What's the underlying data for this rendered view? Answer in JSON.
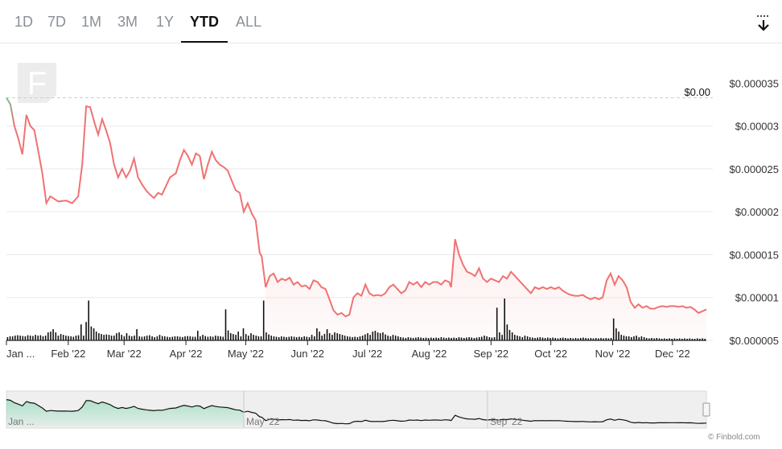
{
  "tabs": [
    {
      "label": "1D",
      "active": false
    },
    {
      "label": "7D",
      "active": false
    },
    {
      "label": "1M",
      "active": false
    },
    {
      "label": "3M",
      "active": false
    },
    {
      "label": "1Y",
      "active": false
    },
    {
      "label": "YTD",
      "active": true
    },
    {
      "label": "ALL",
      "active": false
    }
  ],
  "download_icon": "download-icon",
  "credit": "© Finbold.com",
  "colors": {
    "line": "#f07272",
    "fill": "#fbdada",
    "start": "#5fcf9c",
    "volume": "#111111",
    "grid": "#e9e9e9"
  },
  "chart_data": {
    "type": "line",
    "ylim": [
      5e-06,
      3.55e-05
    ],
    "y_ticks": [
      {
        "v": 3.5e-05,
        "label": "$0.000035"
      },
      {
        "v": 3e-05,
        "label": "$0.00003"
      },
      {
        "v": 2.5e-05,
        "label": "$0.000025"
      },
      {
        "v": 2e-05,
        "label": "$0.00002"
      },
      {
        "v": 1.5e-05,
        "label": "$0.000015"
      },
      {
        "v": 1e-05,
        "label": "$0.00001"
      },
      {
        "v": 5e-06,
        "label": "$0.000005"
      }
    ],
    "x_ticks": [
      {
        "d": 0,
        "label": "Jan ..."
      },
      {
        "d": 31,
        "label": "Feb '22"
      },
      {
        "d": 59,
        "label": "Mar '22"
      },
      {
        "d": 90,
        "label": "Apr '22"
      },
      {
        "d": 120,
        "label": "May '22"
      },
      {
        "d": 151,
        "label": "Jun '22"
      },
      {
        "d": 181,
        "label": "Jul '22"
      },
      {
        "d": 212,
        "label": "Aug '22"
      },
      {
        "d": 243,
        "label": "Sep '22"
      },
      {
        "d": 273,
        "label": "Oct '22"
      },
      {
        "d": 304,
        "label": "Nov '22"
      },
      {
        "d": 334,
        "label": "Dec '22"
      }
    ],
    "current_price_label": "$0.00",
    "reference_value": 3.33e-05,
    "series": [
      {
        "points": [
          [
            0,
            3.33e-05
          ],
          [
            2,
            3.25e-05
          ],
          [
            4,
            3e-05
          ],
          [
            6,
            2.85e-05
          ],
          [
            8,
            2.67e-05
          ],
          [
            10,
            3.13e-05
          ],
          [
            12,
            3e-05
          ],
          [
            14,
            2.95e-05
          ],
          [
            16,
            2.7e-05
          ],
          [
            18,
            2.45e-05
          ],
          [
            20,
            2.1e-05
          ],
          [
            22,
            2.18e-05
          ],
          [
            26,
            2.12e-05
          ],
          [
            30,
            2.13e-05
          ],
          [
            33,
            2.1e-05
          ],
          [
            36,
            2.18e-05
          ],
          [
            38,
            2.55e-05
          ],
          [
            40,
            3.23e-05
          ],
          [
            42,
            3.22e-05
          ],
          [
            44,
            3.05e-05
          ],
          [
            46,
            2.9e-05
          ],
          [
            48,
            3.08e-05
          ],
          [
            50,
            2.95e-05
          ],
          [
            52,
            2.8e-05
          ],
          [
            54,
            2.55e-05
          ],
          [
            56,
            2.4e-05
          ],
          [
            58,
            2.5e-05
          ],
          [
            60,
            2.4e-05
          ],
          [
            62,
            2.48e-05
          ],
          [
            64,
            2.62e-05
          ],
          [
            66,
            2.4e-05
          ],
          [
            68,
            2.32e-05
          ],
          [
            70,
            2.25e-05
          ],
          [
            72,
            2.2e-05
          ],
          [
            74,
            2.16e-05
          ],
          [
            76,
            2.22e-05
          ],
          [
            78,
            2.2e-05
          ],
          [
            80,
            2.3e-05
          ],
          [
            82,
            2.4e-05
          ],
          [
            85,
            2.45e-05
          ],
          [
            87,
            2.6e-05
          ],
          [
            89,
            2.72e-05
          ],
          [
            91,
            2.65e-05
          ],
          [
            93,
            2.55e-05
          ],
          [
            95,
            2.68e-05
          ],
          [
            97,
            2.65e-05
          ],
          [
            99,
            2.38e-05
          ],
          [
            101,
            2.55e-05
          ],
          [
            103,
            2.7e-05
          ],
          [
            105,
            2.6e-05
          ],
          [
            107,
            2.55e-05
          ],
          [
            109,
            2.52e-05
          ],
          [
            111,
            2.48e-05
          ],
          [
            113,
            2.36e-05
          ],
          [
            115,
            2.25e-05
          ],
          [
            117,
            2.22e-05
          ],
          [
            119,
            2e-05
          ],
          [
            121,
            2.1e-05
          ],
          [
            123,
            1.98e-05
          ],
          [
            125,
            1.9e-05
          ],
          [
            127,
            1.52e-05
          ],
          [
            128,
            1.48e-05
          ],
          [
            130,
            1.12e-05
          ],
          [
            132,
            1.25e-05
          ],
          [
            134,
            1.28e-05
          ],
          [
            136,
            1.18e-05
          ],
          [
            138,
            1.22e-05
          ],
          [
            140,
            1.2e-05
          ],
          [
            142,
            1.23e-05
          ],
          [
            144,
            1.15e-05
          ],
          [
            146,
            1.18e-05
          ],
          [
            148,
            1.13e-05
          ],
          [
            150,
            1.14e-05
          ],
          [
            152,
            1.1e-05
          ],
          [
            154,
            1.2e-05
          ],
          [
            156,
            1.18e-05
          ],
          [
            158,
            1.12e-05
          ],
          [
            160,
            1.1e-05
          ],
          [
            162,
            9.8e-06
          ],
          [
            164,
            8.5e-06
          ],
          [
            166,
            8e-06
          ],
          [
            168,
            8.2e-06
          ],
          [
            170,
            7.8e-06
          ],
          [
            172,
            8e-06
          ],
          [
            174,
            1e-05
          ],
          [
            176,
            1.05e-05
          ],
          [
            178,
            1.02e-05
          ],
          [
            180,
            1.15e-05
          ],
          [
            182,
            1.05e-05
          ],
          [
            184,
            1.02e-05
          ],
          [
            186,
            1.03e-05
          ],
          [
            188,
            1.02e-05
          ],
          [
            190,
            1.05e-05
          ],
          [
            192,
            1.12e-05
          ],
          [
            194,
            1.15e-05
          ],
          [
            196,
            1.1e-05
          ],
          [
            198,
            1.05e-05
          ],
          [
            200,
            1.08e-05
          ],
          [
            202,
            1.18e-05
          ],
          [
            204,
            1.15e-05
          ],
          [
            206,
            1.18e-05
          ],
          [
            208,
            1.12e-05
          ],
          [
            210,
            1.18e-05
          ],
          [
            212,
            1.15e-05
          ],
          [
            214,
            1.18e-05
          ],
          [
            216,
            1.18e-05
          ],
          [
            218,
            1.15e-05
          ],
          [
            220,
            1.2e-05
          ],
          [
            222,
            1.18e-05
          ],
          [
            223,
            1.12e-05
          ],
          [
            225,
            1.68e-05
          ],
          [
            227,
            1.5e-05
          ],
          [
            229,
            1.38e-05
          ],
          [
            231,
            1.3e-05
          ],
          [
            233,
            1.28e-05
          ],
          [
            235,
            1.25e-05
          ],
          [
            237,
            1.34e-05
          ],
          [
            239,
            1.22e-05
          ],
          [
            241,
            1.18e-05
          ],
          [
            243,
            1.22e-05
          ],
          [
            245,
            1.2e-05
          ],
          [
            247,
            1.18e-05
          ],
          [
            249,
            1.25e-05
          ],
          [
            251,
            1.22e-05
          ],
          [
            253,
            1.3e-05
          ],
          [
            255,
            1.25e-05
          ],
          [
            257,
            1.2e-05
          ],
          [
            259,
            1.15e-05
          ],
          [
            261,
            1.1e-05
          ],
          [
            263,
            1.05e-05
          ],
          [
            265,
            1.12e-05
          ],
          [
            267,
            1.1e-05
          ],
          [
            269,
            1.12e-05
          ],
          [
            271,
            1.1e-05
          ],
          [
            273,
            1.12e-05
          ],
          [
            275,
            1.1e-05
          ],
          [
            277,
            1.12e-05
          ],
          [
            279,
            1.08e-05
          ],
          [
            281,
            1.05e-05
          ],
          [
            283,
            1.03e-05
          ],
          [
            285,
            1.02e-05
          ],
          [
            287,
            1.02e-05
          ],
          [
            289,
            1.03e-05
          ],
          [
            291,
            1e-05
          ],
          [
            293,
            9.8e-06
          ],
          [
            295,
            1e-05
          ],
          [
            297,
            9.8e-06
          ],
          [
            299,
            1e-05
          ],
          [
            301,
            1.2e-05
          ],
          [
            303,
            1.28e-05
          ],
          [
            305,
            1.15e-05
          ],
          [
            307,
            1.25e-05
          ],
          [
            309,
            1.2e-05
          ],
          [
            311,
            1.12e-05
          ],
          [
            313,
            9.5e-06
          ],
          [
            315,
            8.8e-06
          ],
          [
            317,
            9.2e-06
          ],
          [
            319,
            8.8e-06
          ],
          [
            321,
            9e-06
          ],
          [
            323,
            8.7e-06
          ],
          [
            325,
            8.7e-06
          ],
          [
            327,
            8.9e-06
          ],
          [
            329,
            9e-06
          ],
          [
            331,
            8.9e-06
          ],
          [
            333,
            9e-06
          ],
          [
            335,
            9e-06
          ],
          [
            337,
            8.9e-06
          ],
          [
            339,
            9e-06
          ],
          [
            341,
            8.8e-06
          ],
          [
            343,
            8.9e-06
          ],
          [
            345,
            8.6e-06
          ],
          [
            347,
            8.2e-06
          ],
          [
            349,
            8.4e-06
          ],
          [
            351,
            8.6e-06
          ]
        ]
      }
    ],
    "volume": [
      0.08,
      0.1,
      0.1,
      0.12,
      0.13,
      0.12,
      0.11,
      0.1,
      0.13,
      0.12,
      0.11,
      0.14,
      0.12,
      0.13,
      0.1,
      0.12,
      0.2,
      0.22,
      0.28,
      0.2,
      0.12,
      0.16,
      0.14,
      0.12,
      0.11,
      0.1,
      0.09,
      0.12,
      0.13,
      0.4,
      0.12,
      0.46,
      1.0,
      0.35,
      0.3,
      0.22,
      0.18,
      0.16,
      0.14,
      0.15,
      0.14,
      0.12,
      0.12,
      0.18,
      0.2,
      0.14,
      0.1,
      0.18,
      0.12,
      0.1,
      0.12,
      0.28,
      0.1,
      0.09,
      0.1,
      0.12,
      0.13,
      0.1,
      0.08,
      0.1,
      0.14,
      0.11,
      0.1,
      0.09,
      0.08,
      0.09,
      0.1,
      0.1,
      0.09,
      0.08,
      0.1,
      0.11,
      0.1,
      0.09,
      0.09,
      0.24,
      0.1,
      0.14,
      0.11,
      0.09,
      0.1,
      0.09,
      0.12,
      0.11,
      0.1,
      0.09,
      0.78,
      0.25,
      0.18,
      0.16,
      0.14,
      0.22,
      0.1,
      0.3,
      0.16,
      0.12,
      0.18,
      0.14,
      0.12,
      0.1,
      0.1,
      1.0,
      0.2,
      0.15,
      0.12,
      0.1,
      0.09,
      0.08,
      0.1,
      0.09,
      0.08,
      0.09,
      0.1,
      0.09,
      0.08,
      0.09,
      0.08,
      0.1,
      0.09,
      0.08,
      0.14,
      0.1,
      0.3,
      0.22,
      0.12,
      0.16,
      0.28,
      0.18,
      0.14,
      0.2,
      0.18,
      0.16,
      0.14,
      0.12,
      0.1,
      0.09,
      0.08,
      0.09,
      0.08,
      0.1,
      0.12,
      0.15,
      0.18,
      0.14,
      0.22,
      0.24,
      0.2,
      0.18,
      0.2,
      0.15,
      0.12,
      0.1,
      0.14,
      0.12,
      0.1,
      0.08,
      0.07,
      0.06,
      0.08,
      0.07,
      0.06,
      0.07,
      0.08,
      0.07,
      0.06,
      0.07,
      0.06,
      0.07,
      0.06,
      0.07,
      0.06,
      0.08,
      0.07,
      0.06,
      0.07,
      0.06,
      0.07,
      0.06,
      0.08,
      0.07,
      0.06,
      0.07,
      0.08,
      0.07,
      0.06,
      0.07,
      0.08,
      0.09,
      0.12,
      0.1,
      0.08,
      0.07,
      0.08,
      0.82,
      0.2,
      0.14,
      1.05,
      0.4,
      0.26,
      0.2,
      0.14,
      0.12,
      0.1,
      0.08,
      0.12,
      0.1,
      0.08,
      0.07,
      0.06,
      0.07,
      0.08,
      0.07,
      0.06,
      0.07,
      0.06,
      0.07,
      0.06,
      0.05,
      0.06,
      0.07,
      0.06,
      0.05,
      0.06,
      0.05,
      0.06,
      0.05,
      0.06,
      0.07,
      0.06,
      0.05,
      0.06,
      0.05,
      0.06,
      0.05,
      0.06,
      0.05,
      0.06,
      0.05,
      0.06,
      0.55,
      0.3,
      0.22,
      0.14,
      0.12,
      0.1,
      0.1,
      0.08,
      0.1,
      0.12,
      0.08,
      0.1,
      0.08,
      0.06,
      0.05,
      0.06,
      0.05,
      0.06,
      0.05,
      0.04,
      0.05,
      0.04,
      0.05,
      0.04,
      0.05,
      0.04,
      0.05,
      0.04,
      0.05,
      0.04,
      0.05,
      0.04,
      0.04,
      0.05,
      0.04,
      0.05,
      0.04
    ]
  }
}
